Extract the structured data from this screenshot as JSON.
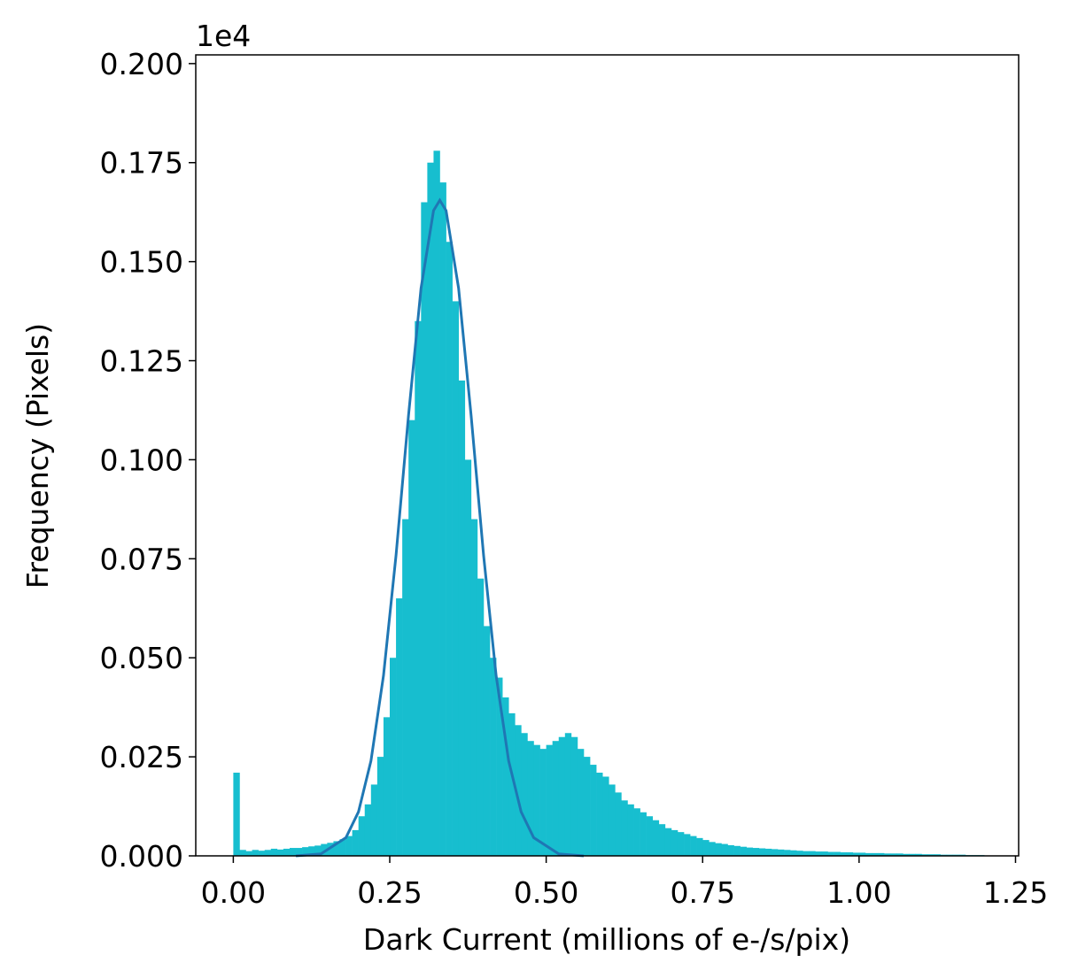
{
  "chart_data": {
    "type": "histogram",
    "xlabel": "Dark Current (millions of e-/s/pix)",
    "ylabel": "Frequency (Pixels)",
    "y_offset_label": "1e4",
    "color": "#17becf",
    "bins": [
      0,
      0.01,
      0.02,
      0.03,
      0.04,
      0.05,
      0.06,
      0.07,
      0.08,
      0.09,
      0.1,
      0.11,
      0.12,
      0.13,
      0.14,
      0.15,
      0.16,
      0.17,
      0.18,
      0.19,
      0.2,
      0.21,
      0.22,
      0.23,
      0.24,
      0.25,
      0.26,
      0.27,
      0.28,
      0.29,
      0.3,
      0.31,
      0.32,
      0.33,
      0.34,
      0.35,
      0.36,
      0.37,
      0.38,
      0.39,
      0.4,
      0.41,
      0.42,
      0.43,
      0.44,
      0.45,
      0.46,
      0.47,
      0.48,
      0.49,
      0.5,
      0.51,
      0.52,
      0.53,
      0.54,
      0.55,
      0.56,
      0.57,
      0.58,
      0.59,
      0.6,
      0.61,
      0.62,
      0.63,
      0.64,
      0.65,
      0.66,
      0.67,
      0.68,
      0.69,
      0.7,
      0.71,
      0.72,
      0.73,
      0.74,
      0.75,
      0.76,
      0.77,
      0.78,
      0.79,
      0.8,
      0.81,
      0.82,
      0.83,
      0.84,
      0.85,
      0.86,
      0.87,
      0.88,
      0.89,
      0.9,
      0.91,
      0.92,
      0.93,
      0.94,
      0.95,
      0.96,
      0.97,
      0.98,
      0.99,
      1.0,
      1.01,
      1.02,
      1.03,
      1.04,
      1.05,
      1.06,
      1.07,
      1.08,
      1.09,
      1.1,
      1.11,
      1.12,
      1.13,
      1.14,
      1.15,
      1.16,
      1.17,
      1.18,
      1.19,
      1.2
    ],
    "values": [
      0.021,
      0.0015,
      0.0012,
      0.0015,
      0.0013,
      0.0015,
      0.0018,
      0.0016,
      0.0018,
      0.002,
      0.002,
      0.0022,
      0.0024,
      0.0026,
      0.003,
      0.0033,
      0.0037,
      0.0042,
      0.005,
      0.0065,
      0.01,
      0.013,
      0.018,
      0.025,
      0.035,
      0.05,
      0.065,
      0.085,
      0.11,
      0.135,
      0.165,
      0.175,
      0.178,
      0.17,
      0.155,
      0.14,
      0.12,
      0.1,
      0.085,
      0.07,
      0.058,
      0.05,
      0.045,
      0.04,
      0.036,
      0.033,
      0.031,
      0.029,
      0.028,
      0.027,
      0.028,
      0.029,
      0.03,
      0.031,
      0.03,
      0.027,
      0.025,
      0.023,
      0.021,
      0.02,
      0.018,
      0.016,
      0.014,
      0.013,
      0.012,
      0.011,
      0.01,
      0.009,
      0.008,
      0.007,
      0.0065,
      0.006,
      0.0055,
      0.005,
      0.0045,
      0.004,
      0.0035,
      0.0032,
      0.003,
      0.0027,
      0.0025,
      0.0023,
      0.0021,
      0.002,
      0.0019,
      0.0018,
      0.0017,
      0.0016,
      0.0015,
      0.0014,
      0.0013,
      0.0012,
      0.0012,
      0.0011,
      0.0011,
      0.001,
      0.001,
      0.0009,
      0.0009,
      0.0008,
      0.0008,
      0.0007,
      0.0007,
      0.0007,
      0.0006,
      0.0006,
      0.0006,
      0.0005,
      0.0005,
      0.0005,
      0.0004,
      0.0004,
      0.0004,
      0.0003,
      0.0003,
      0.0003,
      0.0003,
      0.0002,
      0.0002,
      0.0002
    ],
    "fit": {
      "type": "line",
      "color": "#1f77b4",
      "x": [
        0.1,
        0.14,
        0.18,
        0.2,
        0.22,
        0.24,
        0.26,
        0.28,
        0.3,
        0.32,
        0.33,
        0.34,
        0.36,
        0.38,
        0.4,
        0.42,
        0.44,
        0.46,
        0.48,
        0.52,
        0.56
      ],
      "values": [
        0.0,
        0.0005,
        0.0046,
        0.0111,
        0.024,
        0.0455,
        0.0758,
        0.1112,
        0.1433,
        0.1629,
        0.1655,
        0.1629,
        0.1433,
        0.1112,
        0.0758,
        0.0455,
        0.024,
        0.0111,
        0.0046,
        0.0005,
        0.0
      ]
    },
    "xlim": [
      -0.06,
      1.255
    ],
    "ylim": [
      0,
      0.2022
    ],
    "xticks": [
      {
        "value": 0,
        "label": "0.00"
      },
      {
        "value": 0.25,
        "label": "0.25"
      },
      {
        "value": 0.5,
        "label": "0.50"
      },
      {
        "value": 0.75,
        "label": "0.75"
      },
      {
        "value": 1,
        "label": "1.00"
      },
      {
        "value": 1.25,
        "label": "1.25"
      }
    ],
    "yticks": [
      {
        "value": 0,
        "label": "0.000"
      },
      {
        "value": 0.025,
        "label": "0.025"
      },
      {
        "value": 0.05,
        "label": "0.050"
      },
      {
        "value": 0.075,
        "label": "0.075"
      },
      {
        "value": 0.1,
        "label": "0.100"
      },
      {
        "value": 0.125,
        "label": "0.125"
      },
      {
        "value": 0.15,
        "label": "0.150"
      },
      {
        "value": 0.175,
        "label": "0.175"
      },
      {
        "value": 0.2,
        "label": "0.200"
      }
    ]
  }
}
